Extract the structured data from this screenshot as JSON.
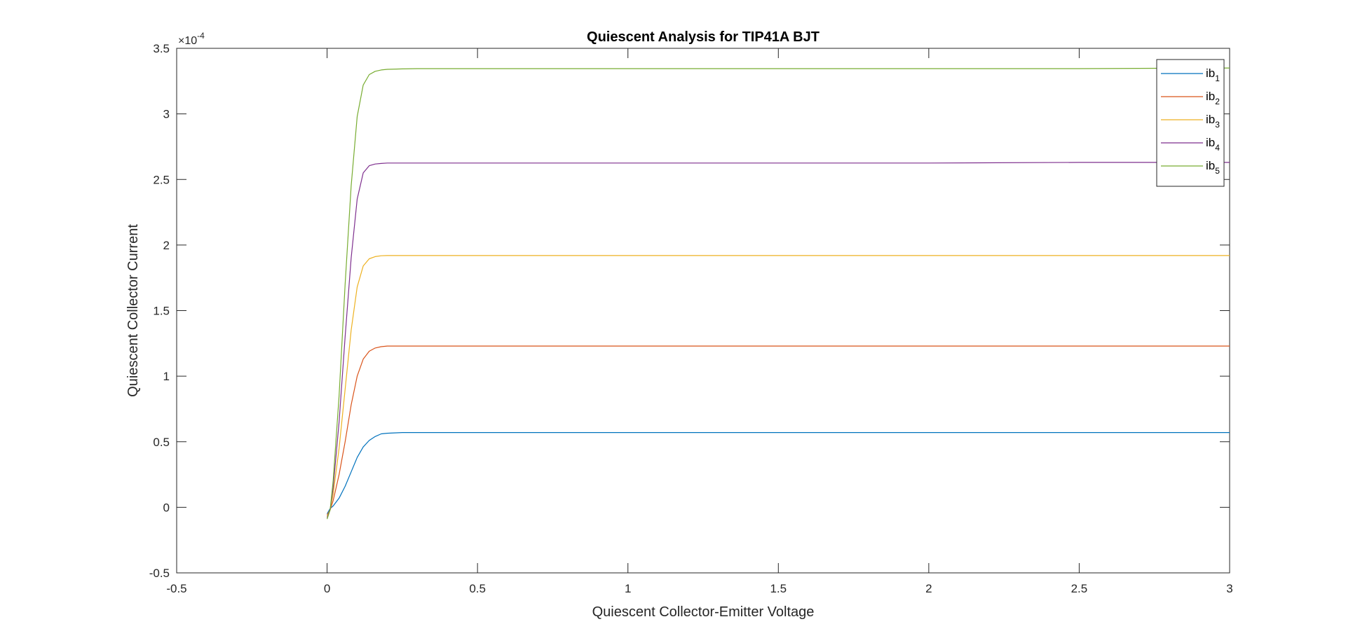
{
  "chart_data": {
    "type": "line",
    "title": "Quiescent Analysis for TIP41A BJT",
    "xlabel": "Quiescent Collector-Emitter Voltage",
    "ylabel": "Quiescent Collector Current",
    "xlim": [
      -0.5,
      3
    ],
    "ylim": [
      -0.5,
      3.5
    ],
    "y_scale_factor": {
      "base": "×10",
      "exponent": "-4"
    },
    "x_ticks": [
      -0.5,
      0,
      0.5,
      1,
      1.5,
      2,
      2.5,
      3
    ],
    "x_tick_labels": [
      "-0.5",
      "0",
      "0.5",
      "1",
      "1.5",
      "2",
      "2.5",
      "3"
    ],
    "y_ticks": [
      -0.5,
      0,
      0.5,
      1,
      1.5,
      2,
      2.5,
      3,
      3.5
    ],
    "y_tick_labels": [
      "-0.5",
      "0",
      "0.5",
      "1",
      "1.5",
      "2",
      "2.5",
      "3",
      "3.5"
    ],
    "grid": false,
    "legend_position": "top-right",
    "series": [
      {
        "name": "ib",
        "subscript": "1",
        "color": "#0072BD",
        "x": [
          0,
          0.01,
          0.02,
          0.04,
          0.06,
          0.08,
          0.1,
          0.12,
          0.14,
          0.16,
          0.18,
          0.2,
          0.25,
          0.3,
          0.5,
          1,
          1.5,
          2,
          2.5,
          3
        ],
        "y": [
          -0.05,
          -0.01,
          0.01,
          0.07,
          0.16,
          0.27,
          0.38,
          0.46,
          0.51,
          0.54,
          0.56,
          0.565,
          0.57,
          0.57,
          0.57,
          0.57,
          0.57,
          0.57,
          0.57,
          0.57
        ]
      },
      {
        "name": "ib",
        "subscript": "2",
        "color": "#D95319",
        "x": [
          0,
          0.01,
          0.02,
          0.04,
          0.06,
          0.08,
          0.1,
          0.12,
          0.14,
          0.16,
          0.18,
          0.2,
          0.25,
          0.3,
          0.5,
          1,
          1.5,
          2,
          2.5,
          3
        ],
        "y": [
          -0.06,
          -0.02,
          0.05,
          0.25,
          0.5,
          0.78,
          1.0,
          1.13,
          1.19,
          1.215,
          1.225,
          1.23,
          1.23,
          1.23,
          1.23,
          1.23,
          1.23,
          1.23,
          1.23,
          1.23
        ]
      },
      {
        "name": "ib",
        "subscript": "3",
        "color": "#EDB120",
        "x": [
          0,
          0.01,
          0.02,
          0.04,
          0.06,
          0.08,
          0.1,
          0.12,
          0.14,
          0.16,
          0.18,
          0.2,
          0.25,
          0.3,
          0.5,
          1,
          1.5,
          2,
          2.5,
          3
        ],
        "y": [
          -0.07,
          -0.02,
          0.1,
          0.45,
          0.9,
          1.35,
          1.68,
          1.84,
          1.895,
          1.912,
          1.918,
          1.92,
          1.92,
          1.92,
          1.92,
          1.92,
          1.92,
          1.92,
          1.92,
          1.92
        ]
      },
      {
        "name": "ib",
        "subscript": "4",
        "color": "#7E2F8E",
        "x": [
          0,
          0.01,
          0.02,
          0.04,
          0.06,
          0.08,
          0.1,
          0.12,
          0.14,
          0.16,
          0.18,
          0.2,
          0.25,
          0.3,
          0.5,
          1,
          1.5,
          2,
          2.5,
          3
        ],
        "y": [
          -0.08,
          -0.02,
          0.15,
          0.65,
          1.3,
          1.9,
          2.35,
          2.55,
          2.605,
          2.618,
          2.622,
          2.625,
          2.625,
          2.625,
          2.625,
          2.625,
          2.625,
          2.625,
          2.63,
          2.63
        ]
      },
      {
        "name": "ib",
        "subscript": "5",
        "color": "#77AC30",
        "x": [
          0,
          0.01,
          0.02,
          0.04,
          0.06,
          0.08,
          0.1,
          0.12,
          0.14,
          0.16,
          0.18,
          0.2,
          0.25,
          0.3,
          0.5,
          1,
          1.5,
          2,
          2.5,
          3
        ],
        "y": [
          -0.09,
          -0.02,
          0.2,
          0.85,
          1.7,
          2.45,
          2.98,
          3.22,
          3.3,
          3.325,
          3.335,
          3.34,
          3.343,
          3.345,
          3.345,
          3.345,
          3.345,
          3.345,
          3.345,
          3.35
        ]
      }
    ]
  }
}
